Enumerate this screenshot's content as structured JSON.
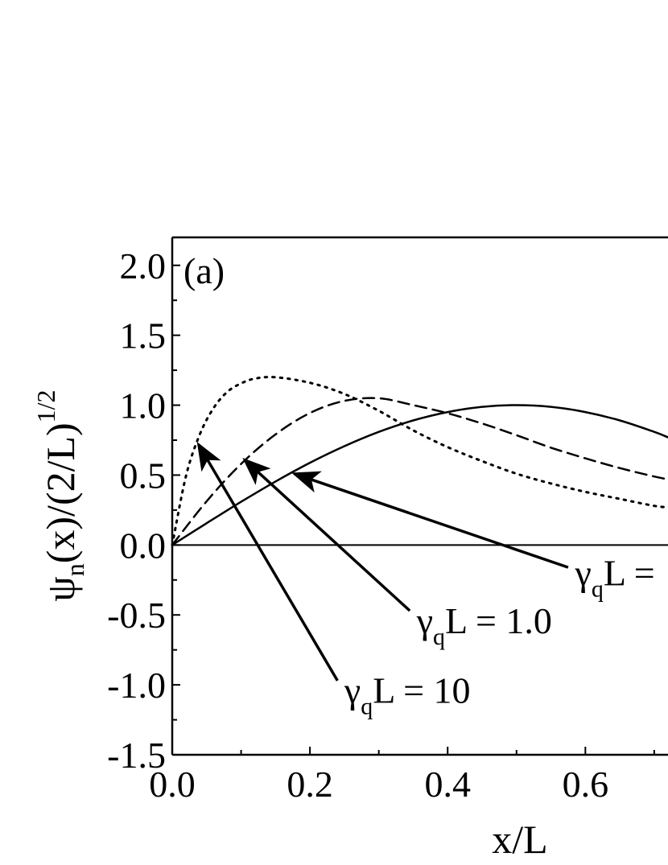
{
  "chart_data": {
    "type": "line",
    "panel_label": "(a)",
    "xlabel": "x/L",
    "ylabel": "ψn(x)/(2/L)1/2",
    "ylabel_parts": {
      "main": "ψ",
      "sub": "n",
      "mid": "(x)/(2/L)",
      "sup": "1/2"
    },
    "xlim": [
      0.0,
      0.72
    ],
    "ylim": [
      -1.5,
      2.2
    ],
    "x_ticks": [
      0.0,
      0.2,
      0.4,
      0.6
    ],
    "x_tick_labels": [
      "0.0",
      "0.2",
      "0.4",
      "0.6"
    ],
    "y_ticks": [
      -1.5,
      -1.0,
      -0.5,
      0.0,
      0.5,
      1.0,
      1.5,
      2.0
    ],
    "y_tick_labels": [
      "-1.5",
      "-1.0",
      "-0.5",
      "0.0",
      "0.5",
      "1.0",
      "1.5",
      "2.0"
    ],
    "grid": false,
    "zero_line": true,
    "series": [
      {
        "style": "solid",
        "x": [
          0.0,
          0.05,
          0.1,
          0.15,
          0.2,
          0.25,
          0.3,
          0.35,
          0.4,
          0.45,
          0.5,
          0.55,
          0.6,
          0.65,
          0.7,
          0.72
        ],
        "y": [
          0.0,
          0.156,
          0.309,
          0.454,
          0.588,
          0.707,
          0.809,
          0.891,
          0.951,
          0.988,
          1.0,
          0.988,
          0.951,
          0.891,
          0.809,
          0.77
        ]
      },
      {
        "style": "dashed",
        "x": [
          0.0,
          0.05,
          0.1,
          0.15,
          0.2,
          0.25,
          0.3,
          0.35,
          0.4,
          0.45,
          0.5,
          0.55,
          0.6,
          0.65,
          0.7,
          0.72
        ],
        "y": [
          0.0,
          0.313,
          0.58,
          0.791,
          0.944,
          1.031,
          1.049,
          1.0,
          0.942,
          0.869,
          0.785,
          0.696,
          0.62,
          0.55,
          0.49,
          0.47
        ]
      },
      {
        "style": "dotted",
        "x": [
          0.0,
          0.02,
          0.04,
          0.06,
          0.08,
          0.1,
          0.12,
          0.15,
          0.2,
          0.25,
          0.3,
          0.35,
          0.4,
          0.45,
          0.5,
          0.55,
          0.6,
          0.65,
          0.7,
          0.72
        ],
        "y": [
          0.0,
          0.494,
          0.79,
          0.979,
          1.095,
          1.156,
          1.19,
          1.2,
          1.16,
          1.08,
          0.96,
          0.82,
          0.7,
          0.6,
          0.51,
          0.44,
          0.38,
          0.33,
          0.28,
          0.27
        ]
      }
    ],
    "annotations": [
      {
        "main": "γ",
        "sub": "q",
        "rest": "L = 10",
        "text_pos": [
          0.25,
          -1.13
        ],
        "arrow_from": [
          0.24,
          -0.97
        ],
        "arrow_to": [
          0.038,
          0.72
        ]
      },
      {
        "main": "γ",
        "sub": "q",
        "rest": "L = 1.0",
        "text_pos": [
          0.355,
          -0.63
        ],
        "arrow_from": [
          0.345,
          -0.47
        ],
        "arrow_to": [
          0.105,
          0.61
        ]
      },
      {
        "main": "γ",
        "sub": "q",
        "rest": "L =",
        "text_pos": [
          0.585,
          -0.29
        ],
        "arrow_from": [
          0.575,
          -0.16
        ],
        "arrow_to": [
          0.177,
          0.51
        ]
      }
    ]
  }
}
